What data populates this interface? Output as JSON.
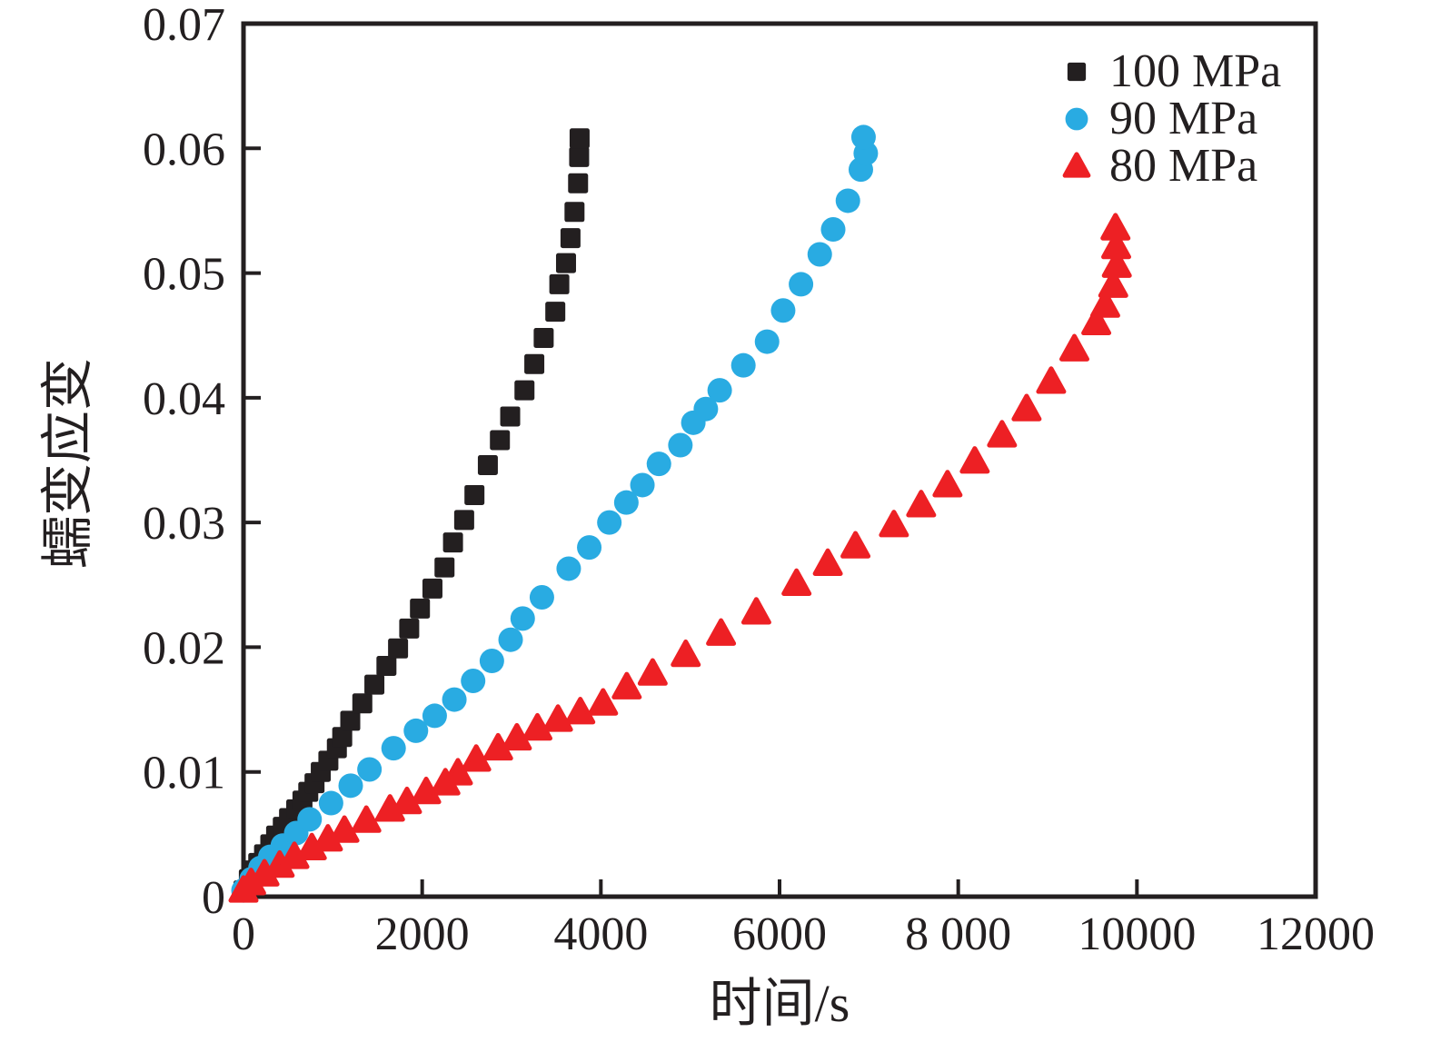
{
  "chart_data": {
    "type": "scatter",
    "title": "",
    "xlabel": "时间/s",
    "ylabel": "蠕变应变",
    "xlim": [
      0,
      12000
    ],
    "ylim": [
      0,
      0.07
    ],
    "grid": false,
    "legend_position": "top-right",
    "background": "#ffffff",
    "axis_color": "#231f20",
    "x_ticks": [
      {
        "value": 0,
        "label": "0"
      },
      {
        "value": 2000,
        "label": "2000"
      },
      {
        "value": 4000,
        "label": "4000"
      },
      {
        "value": 6000,
        "label": "6000"
      },
      {
        "value": 8000,
        "label": "8 000"
      },
      {
        "value": 10000,
        "label": "10000"
      },
      {
        "value": 12000,
        "label": "12000"
      }
    ],
    "y_ticks": [
      {
        "value": 0,
        "label": "0"
      },
      {
        "value": 0.01,
        "label": "0.01"
      },
      {
        "value": 0.02,
        "label": "0.02"
      },
      {
        "value": 0.03,
        "label": "0.03"
      },
      {
        "value": 0.04,
        "label": "0.04"
      },
      {
        "value": 0.05,
        "label": "0.05"
      },
      {
        "value": 0.06,
        "label": "0.06"
      },
      {
        "value": 0.07,
        "label": "0.07"
      }
    ],
    "series": [
      {
        "name": "100 MPa",
        "stress_mpa": 100,
        "marker": "square",
        "color": "#231f20",
        "points": [
          [
            0,
            0.0005
          ],
          [
            60,
            0.0014
          ],
          [
            115,
            0.0021
          ],
          [
            165,
            0.0027
          ],
          [
            230,
            0.0034
          ],
          [
            300,
            0.0042
          ],
          [
            365,
            0.0049
          ],
          [
            440,
            0.0056
          ],
          [
            510,
            0.0063
          ],
          [
            590,
            0.007
          ],
          [
            660,
            0.0077
          ],
          [
            725,
            0.0084
          ],
          [
            795,
            0.0091
          ],
          [
            865,
            0.01
          ],
          [
            950,
            0.0109
          ],
          [
            1045,
            0.0119
          ],
          [
            1105,
            0.0128
          ],
          [
            1195,
            0.0141
          ],
          [
            1330,
            0.0155
          ],
          [
            1465,
            0.017
          ],
          [
            1600,
            0.0185
          ],
          [
            1730,
            0.0199
          ],
          [
            1855,
            0.0215
          ],
          [
            1975,
            0.0231
          ],
          [
            2115,
            0.0247
          ],
          [
            2250,
            0.0264
          ],
          [
            2345,
            0.0284
          ],
          [
            2470,
            0.0302
          ],
          [
            2585,
            0.0322
          ],
          [
            2735,
            0.0346
          ],
          [
            2870,
            0.0366
          ],
          [
            2985,
            0.0385
          ],
          [
            3145,
            0.0406
          ],
          [
            3255,
            0.0427
          ],
          [
            3360,
            0.0448
          ],
          [
            3490,
            0.0469
          ],
          [
            3535,
            0.0491
          ],
          [
            3610,
            0.0508
          ],
          [
            3660,
            0.0528
          ],
          [
            3705,
            0.0549
          ],
          [
            3745,
            0.0572
          ],
          [
            3757,
            0.0593
          ],
          [
            3762,
            0.0608
          ]
        ]
      },
      {
        "name": "90 MPa",
        "stress_mpa": 90,
        "marker": "circle",
        "color": "#29abe2",
        "points": [
          [
            0,
            0.0005
          ],
          [
            90,
            0.0014
          ],
          [
            190,
            0.0023
          ],
          [
            300,
            0.0032
          ],
          [
            440,
            0.0041
          ],
          [
            590,
            0.0051
          ],
          [
            740,
            0.0062
          ],
          [
            980,
            0.0075
          ],
          [
            1200,
            0.0089
          ],
          [
            1410,
            0.0102
          ],
          [
            1680,
            0.0119
          ],
          [
            1930,
            0.0133
          ],
          [
            2140,
            0.0145
          ],
          [
            2360,
            0.0158
          ],
          [
            2570,
            0.0173
          ],
          [
            2780,
            0.0189
          ],
          [
            2990,
            0.0206
          ],
          [
            3125,
            0.0223
          ],
          [
            3340,
            0.024
          ],
          [
            3640,
            0.0263
          ],
          [
            3870,
            0.028
          ],
          [
            4095,
            0.03
          ],
          [
            4285,
            0.0316
          ],
          [
            4465,
            0.033
          ],
          [
            4650,
            0.0347
          ],
          [
            4890,
            0.0362
          ],
          [
            5035,
            0.038
          ],
          [
            5175,
            0.0391
          ],
          [
            5330,
            0.0406
          ],
          [
            5595,
            0.0426
          ],
          [
            5860,
            0.0445
          ],
          [
            6040,
            0.047
          ],
          [
            6240,
            0.0491
          ],
          [
            6450,
            0.0515
          ],
          [
            6600,
            0.0535
          ],
          [
            6765,
            0.0558
          ],
          [
            6910,
            0.0583
          ],
          [
            6965,
            0.0596
          ],
          [
            6940,
            0.0609
          ]
        ]
      },
      {
        "name": "80 MPa",
        "stress_mpa": 80,
        "marker": "triangle",
        "color": "#ed2024",
        "points": [
          [
            0,
            0.0005
          ],
          [
            85,
            0.0011
          ],
          [
            235,
            0.0018
          ],
          [
            405,
            0.0025
          ],
          [
            570,
            0.0032
          ],
          [
            765,
            0.0039
          ],
          [
            945,
            0.0046
          ],
          [
            1130,
            0.0053
          ],
          [
            1375,
            0.0061
          ],
          [
            1640,
            0.007
          ],
          [
            1830,
            0.0076
          ],
          [
            2045,
            0.0084
          ],
          [
            2260,
            0.0091
          ],
          [
            2400,
            0.0099
          ],
          [
            2605,
            0.011
          ],
          [
            2850,
            0.0119
          ],
          [
            3060,
            0.0127
          ],
          [
            3290,
            0.0135
          ],
          [
            3520,
            0.0142
          ],
          [
            3770,
            0.0148
          ],
          [
            4025,
            0.0155
          ],
          [
            4290,
            0.0168
          ],
          [
            4580,
            0.0179
          ],
          [
            4950,
            0.0194
          ],
          [
            5345,
            0.0211
          ],
          [
            5740,
            0.0228
          ],
          [
            6190,
            0.0251
          ],
          [
            6540,
            0.0267
          ],
          [
            6850,
            0.0281
          ],
          [
            7280,
            0.0298
          ],
          [
            7585,
            0.0314
          ],
          [
            7880,
            0.033
          ],
          [
            8185,
            0.0349
          ],
          [
            8490,
            0.037
          ],
          [
            8765,
            0.0391
          ],
          [
            9040,
            0.0413
          ],
          [
            9300,
            0.0439
          ],
          [
            9545,
            0.046
          ],
          [
            9645,
            0.0474
          ],
          [
            9735,
            0.049
          ],
          [
            9775,
            0.0506
          ],
          [
            9768,
            0.0521
          ],
          [
            9760,
            0.0536
          ]
        ]
      }
    ]
  }
}
